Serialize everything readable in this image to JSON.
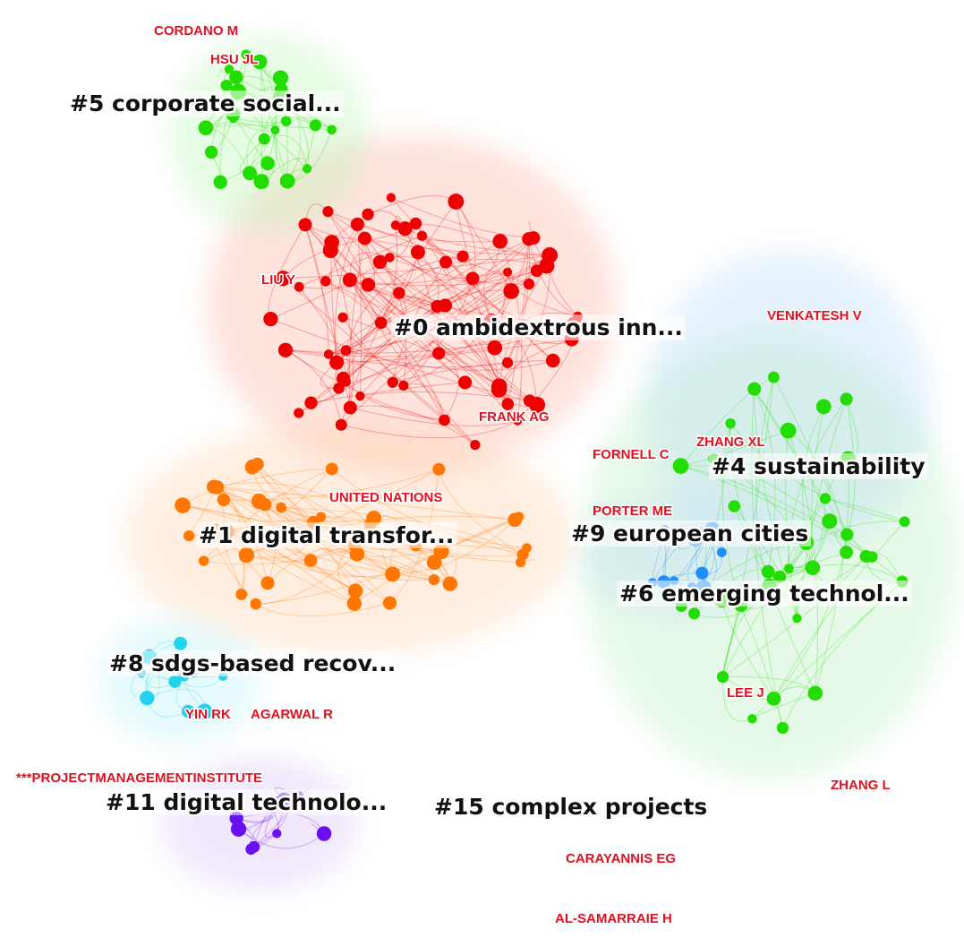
{
  "clusters": [
    "#5 corporate social...",
    "#0 ambidextrous inn...",
    "#4 sustainability",
    "#1 digital transfor...",
    "#9 european cities",
    "#6 emerging technol...",
    "#8 sdgs-based recov...",
    "#11 digital technolo...",
    "#15 complex projects"
  ],
  "authors": [
    "CORDANO M",
    "HSU JL",
    "LIU Y",
    "VENKATESH V",
    "FRANK AG",
    "FORNELL C",
    "ZHANG XL",
    "UNITED NATIONS",
    "PORTER ME",
    "LEE J",
    "YIN RK",
    "AGARWAL R",
    "***PROJECTMANAGEMENTINSTITUTE",
    "ZHANG L",
    "CARAYANNIS EG",
    "AL-SAMARRAIE H"
  ]
}
